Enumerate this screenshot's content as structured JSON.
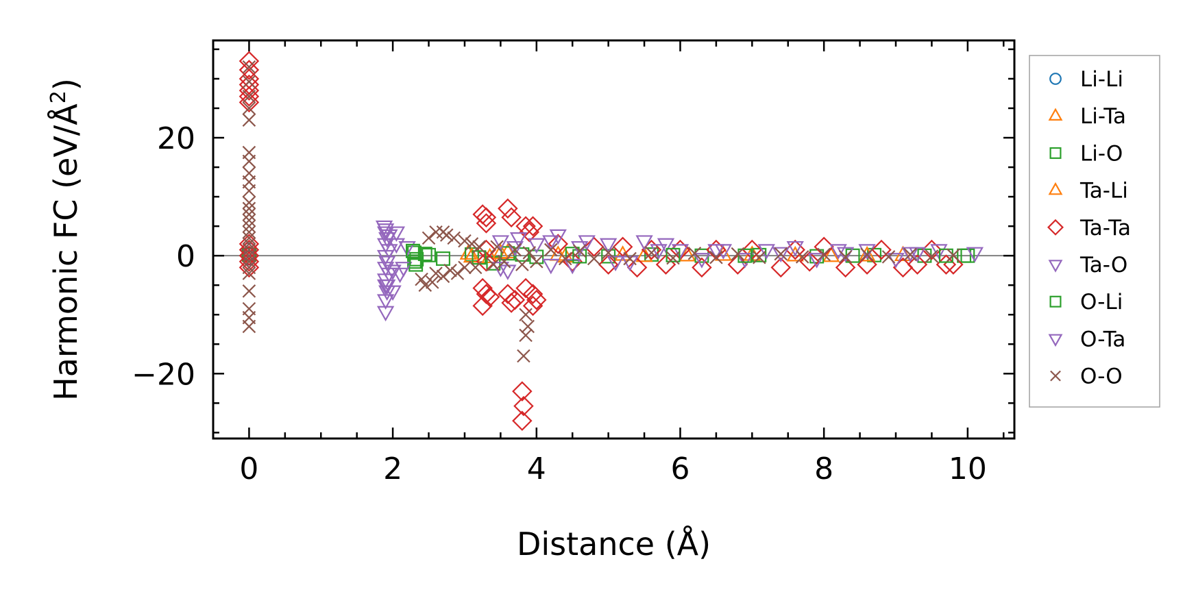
{
  "chart_data": {
    "type": "scatter",
    "xlabel": "Distance (Å)",
    "ylabel": "Harmonic FC (eV/Å²)",
    "ylabel_parts": {
      "main": "Harmonic FC (eV/Å",
      "superscript": "2",
      "close": ")"
    },
    "xlim": [
      -0.5,
      10.65
    ],
    "ylim": [
      -31,
      36.5
    ],
    "x_ticks": [
      0,
      2,
      4,
      6,
      8,
      10
    ],
    "x_tick_labels": [
      "0",
      "2",
      "4",
      "6",
      "8",
      "10"
    ],
    "y_ticks": [
      -20,
      0,
      20
    ],
    "y_tick_labels": [
      "−20",
      "0",
      "20"
    ],
    "zero_line": true,
    "grid": false,
    "legend_position": "outside-right",
    "series": [
      {
        "name": "Li-Li",
        "marker": "circle",
        "color": "#1f77b4",
        "points": [
          [
            0.0,
            0.3
          ],
          [
            0.0,
            -0.4
          ],
          [
            0.0,
            1.0
          ]
        ]
      },
      {
        "name": "Li-Ta",
        "marker": "triangle-up",
        "color": "#ff7f0e",
        "points": [
          [
            3.05,
            0.3
          ],
          [
            3.35,
            -0.3
          ],
          [
            3.6,
            0.5
          ],
          [
            4.4,
            -0.2
          ],
          [
            5.2,
            0.1
          ],
          [
            6.1,
            0.0
          ],
          [
            7.0,
            0.1
          ],
          [
            8.1,
            -0.1
          ],
          [
            9.1,
            0.05
          ]
        ]
      },
      {
        "name": "Li-O",
        "marker": "square",
        "color": "#2ca02c",
        "points": [
          [
            0.0,
            0.2
          ],
          [
            2.3,
            0.5
          ],
          [
            2.3,
            -1.0
          ],
          [
            2.32,
            -1.5
          ],
          [
            2.45,
            0.3
          ],
          [
            2.7,
            -0.5
          ],
          [
            3.1,
            0.2
          ],
          [
            3.4,
            -1.3
          ],
          [
            3.6,
            0.4
          ],
          [
            4.0,
            -0.2
          ],
          [
            4.5,
            0.3
          ],
          [
            5.0,
            -0.1
          ],
          [
            5.6,
            0.2
          ],
          [
            6.3,
            0.0
          ],
          [
            7.1,
            0.1
          ],
          [
            7.9,
            -0.1
          ],
          [
            8.7,
            0.1
          ],
          [
            9.4,
            0.0
          ],
          [
            9.95,
            0.0
          ],
          [
            10.0,
            0.0
          ]
        ]
      },
      {
        "name": "Ta-Li",
        "marker": "triangle-up",
        "color": "#ff7f0e",
        "points": [
          [
            3.1,
            -0.2
          ],
          [
            3.5,
            0.4
          ],
          [
            4.3,
            0.1
          ],
          [
            5.5,
            -0.1
          ],
          [
            6.6,
            0.1
          ],
          [
            7.6,
            0.0
          ],
          [
            8.6,
            0.0
          ]
        ]
      },
      {
        "name": "Ta-Ta",
        "marker": "diamond",
        "color": "#d62728",
        "points": [
          [
            0.0,
            33.0
          ],
          [
            0.0,
            31.5
          ],
          [
            0.0,
            30.0
          ],
          [
            0.0,
            29.0
          ],
          [
            0.0,
            28.0
          ],
          [
            0.0,
            27.0
          ],
          [
            0.0,
            26.0
          ],
          [
            0.0,
            2.0
          ],
          [
            0.0,
            1.0
          ],
          [
            0.0,
            0.0
          ],
          [
            0.0,
            -1.0
          ],
          [
            0.0,
            -2.0
          ],
          [
            3.25,
            7.0
          ],
          [
            3.3,
            6.5
          ],
          [
            3.3,
            5.5
          ],
          [
            3.25,
            -5.5
          ],
          [
            3.3,
            -6.5
          ],
          [
            3.35,
            -7.0
          ],
          [
            3.25,
            -8.5
          ],
          [
            3.3,
            1.0
          ],
          [
            3.3,
            -1.0
          ],
          [
            3.6,
            8.0
          ],
          [
            3.65,
            6.5
          ],
          [
            3.6,
            -6.5
          ],
          [
            3.65,
            -8.0
          ],
          [
            3.7,
            -7.5
          ],
          [
            3.85,
            5.0
          ],
          [
            3.9,
            4.0
          ],
          [
            3.95,
            5.0
          ],
          [
            3.85,
            -5.5
          ],
          [
            3.95,
            -6.5
          ],
          [
            4.0,
            -7.5
          ],
          [
            3.95,
            -8.5
          ],
          [
            3.8,
            -23.0
          ],
          [
            3.82,
            -25.5
          ],
          [
            3.8,
            -28.0
          ],
          [
            4.3,
            2.0
          ],
          [
            4.5,
            -1.0
          ],
          [
            4.8,
            1.5
          ],
          [
            5.0,
            -1.5
          ],
          [
            5.2,
            1.5
          ],
          [
            5.4,
            -2.0
          ],
          [
            5.6,
            1.0
          ],
          [
            5.8,
            -1.5
          ],
          [
            6.0,
            1.0
          ],
          [
            6.3,
            -2.0
          ],
          [
            6.5,
            1.0
          ],
          [
            6.8,
            -1.5
          ],
          [
            7.0,
            1.0
          ],
          [
            7.4,
            -2.0
          ],
          [
            7.6,
            1.0
          ],
          [
            7.8,
            -1.0
          ],
          [
            8.0,
            1.5
          ],
          [
            8.3,
            -2.0
          ],
          [
            8.6,
            -1.5
          ],
          [
            8.8,
            1.0
          ],
          [
            9.1,
            -2.0
          ],
          [
            9.3,
            -1.5
          ],
          [
            9.5,
            1.0
          ],
          [
            9.7,
            -1.5
          ],
          [
            9.8,
            -1.5
          ]
        ]
      },
      {
        "name": "Ta-O",
        "marker": "triangle-down",
        "color": "#9467bd",
        "points": [
          [
            1.88,
            5.0
          ],
          [
            1.9,
            4.0
          ],
          [
            1.92,
            3.0
          ],
          [
            1.9,
            2.0
          ],
          [
            1.95,
            1.0
          ],
          [
            1.9,
            0.0
          ],
          [
            1.92,
            -1.0
          ],
          [
            1.9,
            -2.0
          ],
          [
            1.95,
            -3.0
          ],
          [
            1.9,
            -4.0
          ],
          [
            1.9,
            -5.0
          ],
          [
            1.92,
            -6.0
          ],
          [
            1.9,
            -7.5
          ],
          [
            1.9,
            -9.5
          ],
          [
            2.0,
            -6.0
          ],
          [
            2.05,
            4.0
          ],
          [
            2.1,
            -3.0
          ],
          [
            2.15,
            -2.0
          ],
          [
            2.2,
            1.5
          ],
          [
            3.5,
            2.5
          ],
          [
            3.6,
            -2.5
          ],
          [
            3.75,
            3.0
          ],
          [
            4.0,
            2.0
          ],
          [
            4.2,
            2.5
          ],
          [
            4.3,
            3.5
          ],
          [
            4.5,
            -1.5
          ],
          [
            4.7,
            2.5
          ],
          [
            5.0,
            2.0
          ],
          [
            5.3,
            -1.0
          ],
          [
            5.5,
            2.5
          ],
          [
            5.8,
            2.0
          ],
          [
            6.0,
            1.0
          ],
          [
            6.3,
            -0.5
          ],
          [
            6.6,
            1.0
          ],
          [
            6.9,
            -0.5
          ],
          [
            7.2,
            1.0
          ],
          [
            7.6,
            1.5
          ],
          [
            7.9,
            -0.5
          ],
          [
            8.2,
            1.0
          ],
          [
            8.6,
            1.0
          ],
          [
            9.0,
            -0.5
          ],
          [
            9.3,
            0.5
          ],
          [
            9.6,
            1.0
          ],
          [
            10.1,
            0.5
          ]
        ]
      },
      {
        "name": "O-Li",
        "marker": "square",
        "color": "#2ca02c",
        "points": [
          [
            2.28,
            0.8
          ],
          [
            2.33,
            -0.6
          ],
          [
            2.5,
            0.1
          ],
          [
            3.2,
            -0.3
          ],
          [
            3.8,
            0.2
          ],
          [
            4.6,
            -0.1
          ],
          [
            5.9,
            0.1
          ],
          [
            6.9,
            0.0
          ],
          [
            8.4,
            0.0
          ],
          [
            9.7,
            0.0
          ]
        ]
      },
      {
        "name": "O-Ta",
        "marker": "triangle-down",
        "color": "#9467bd",
        "points": [
          [
            1.9,
            4.5
          ],
          [
            1.92,
            -5.0
          ],
          [
            1.95,
            3.5
          ],
          [
            2.0,
            -2.5
          ],
          [
            2.05,
            2.0
          ],
          [
            3.5,
            -2.0
          ],
          [
            3.7,
            1.5
          ],
          [
            4.2,
            -1.5
          ],
          [
            4.6,
            1.5
          ],
          [
            5.1,
            -1.0
          ],
          [
            5.7,
            1.0
          ],
          [
            6.5,
            1.0
          ],
          [
            7.4,
            0.5
          ],
          [
            8.3,
            0.5
          ],
          [
            9.2,
            0.5
          ]
        ]
      },
      {
        "name": "O-O",
        "marker": "x",
        "color": "#8c564b",
        "points": [
          [
            0.0,
            32.0
          ],
          [
            0.0,
            29.5
          ],
          [
            0.0,
            27.0
          ],
          [
            0.0,
            25.0
          ],
          [
            0.0,
            23.0
          ],
          [
            0.0,
            17.5
          ],
          [
            0.0,
            16.0
          ],
          [
            0.0,
            14.0
          ],
          [
            0.0,
            12.5
          ],
          [
            0.0,
            11.0
          ],
          [
            0.0,
            9.0
          ],
          [
            0.0,
            8.0
          ],
          [
            0.0,
            7.0
          ],
          [
            0.0,
            6.0
          ],
          [
            0.0,
            5.0
          ],
          [
            0.0,
            4.0
          ],
          [
            0.0,
            3.0
          ],
          [
            0.0,
            2.0
          ],
          [
            0.0,
            1.0
          ],
          [
            0.0,
            0.0
          ],
          [
            0.0,
            -1.0
          ],
          [
            0.0,
            -2.0
          ],
          [
            0.0,
            -3.0
          ],
          [
            0.0,
            -6.0
          ],
          [
            0.0,
            -9.0
          ],
          [
            0.0,
            -10.5
          ],
          [
            0.0,
            -12.0
          ],
          [
            2.4,
            -4.0
          ],
          [
            2.45,
            -5.0
          ],
          [
            2.5,
            3.0
          ],
          [
            2.55,
            -4.5
          ],
          [
            2.6,
            4.0
          ],
          [
            2.6,
            -3.0
          ],
          [
            2.7,
            4.0
          ],
          [
            2.7,
            -3.5
          ],
          [
            2.75,
            3.5
          ],
          [
            2.8,
            -2.5
          ],
          [
            2.85,
            3.0
          ],
          [
            2.9,
            -3.0
          ],
          [
            3.0,
            2.5
          ],
          [
            3.0,
            -2.0
          ],
          [
            3.1,
            2.0
          ],
          [
            3.15,
            -2.0
          ],
          [
            3.2,
            1.5
          ],
          [
            3.4,
            -1.5
          ],
          [
            3.45,
            1.5
          ],
          [
            3.55,
            -1.0
          ],
          [
            3.7,
            1.0
          ],
          [
            3.8,
            -1.5
          ],
          [
            3.85,
            -10.0
          ],
          [
            3.88,
            -12.0
          ],
          [
            3.85,
            -13.5
          ],
          [
            3.82,
            -17.0
          ],
          [
            3.9,
            0.5
          ],
          [
            4.0,
            -1.0
          ],
          [
            4.2,
            1.0
          ],
          [
            4.4,
            -0.5
          ],
          [
            4.6,
            0.8
          ],
          [
            4.8,
            -0.5
          ],
          [
            5.0,
            0.5
          ],
          [
            5.3,
            -0.5
          ],
          [
            5.6,
            0.5
          ],
          [
            5.9,
            -0.4
          ],
          [
            6.2,
            0.4
          ],
          [
            6.5,
            -0.3
          ],
          [
            6.8,
            0.3
          ],
          [
            7.1,
            -0.3
          ],
          [
            7.4,
            0.3
          ],
          [
            7.7,
            -0.2
          ],
          [
            8.0,
            0.2
          ],
          [
            8.3,
            -0.2
          ],
          [
            8.6,
            0.2
          ],
          [
            8.9,
            -0.2
          ],
          [
            9.2,
            0.2
          ],
          [
            9.5,
            -0.1
          ],
          [
            9.8,
            0.1
          ]
        ]
      }
    ]
  }
}
